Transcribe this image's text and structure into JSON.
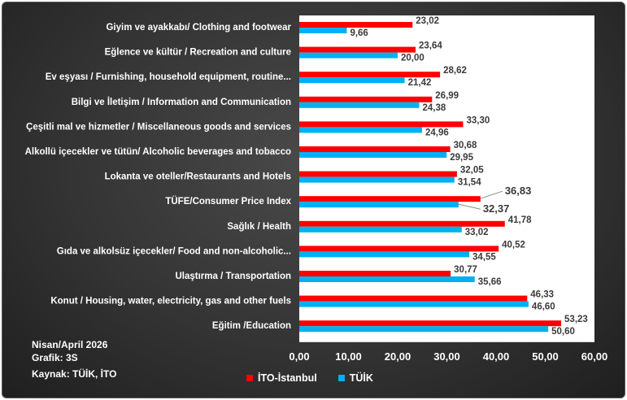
{
  "chart_data": {
    "type": "bar",
    "orientation": "horizontal",
    "categories": [
      "Giyim ve ayakkabı/ Clothing and footwear",
      "Eğlence ve kültür / Recreation and culture",
      "Ev eşyası / Furnishing, household equipment, routine...",
      "Bilgi ve İletişim / Information and Communication",
      "Çeşitli mal ve hizmetler / Miscellaneous goods and services",
      "Alkollü içecekler ve tütün/ Alcoholic beverages and tobacco",
      "Lokanta ve oteller/Restaurants and Hotels",
      "TÜFE/Consumer Price Index",
      "Sağlık / Health",
      "Gıda ve alkolsüz içecekler/ Food and non-alcoholic...",
      "Ulaştırma / Transportation",
      "Konut / Housing, water, electricity, gas and other fuels",
      "Eğitim /Education"
    ],
    "series": [
      {
        "name": "İTO-İstanbul",
        "color": "#ff0000",
        "values": [
          23.02,
          23.64,
          28.62,
          26.99,
          33.3,
          30.68,
          32.05,
          36.83,
          41.78,
          40.52,
          30.77,
          46.33,
          53.23
        ],
        "labels": [
          "23,02",
          "23,64",
          "28,62",
          "26,99",
          "33,30",
          "30,68",
          "32,05",
          "36,83",
          "41,78",
          "40,52",
          "30,77",
          "46,33",
          "53,23"
        ]
      },
      {
        "name": "TÜİK",
        "color": "#00b0f0",
        "values": [
          9.66,
          20.0,
          21.42,
          24.38,
          24.96,
          29.95,
          31.54,
          32.37,
          33.02,
          34.55,
          35.66,
          46.6,
          50.6
        ],
        "labels": [
          "9,66",
          "20,00",
          "21,42",
          "24,38",
          "24,96",
          "29,95",
          "31,54",
          "32,37",
          "33,02",
          "34,55",
          "35,66",
          "46,60",
          "50,60"
        ]
      }
    ],
    "highlight_category": "TÜFE/Consumer Price Index",
    "xlim": [
      0,
      60
    ],
    "xticks": [
      "0,00",
      "10,00",
      "20,00",
      "30,00",
      "40,00",
      "50,00",
      "60,00"
    ],
    "legend_position": "bottom"
  },
  "notes": {
    "date": "Nisan/April 2026",
    "chart_no": "Grafik: 3S",
    "source": "Kaynak: TÜİK, İTO"
  }
}
